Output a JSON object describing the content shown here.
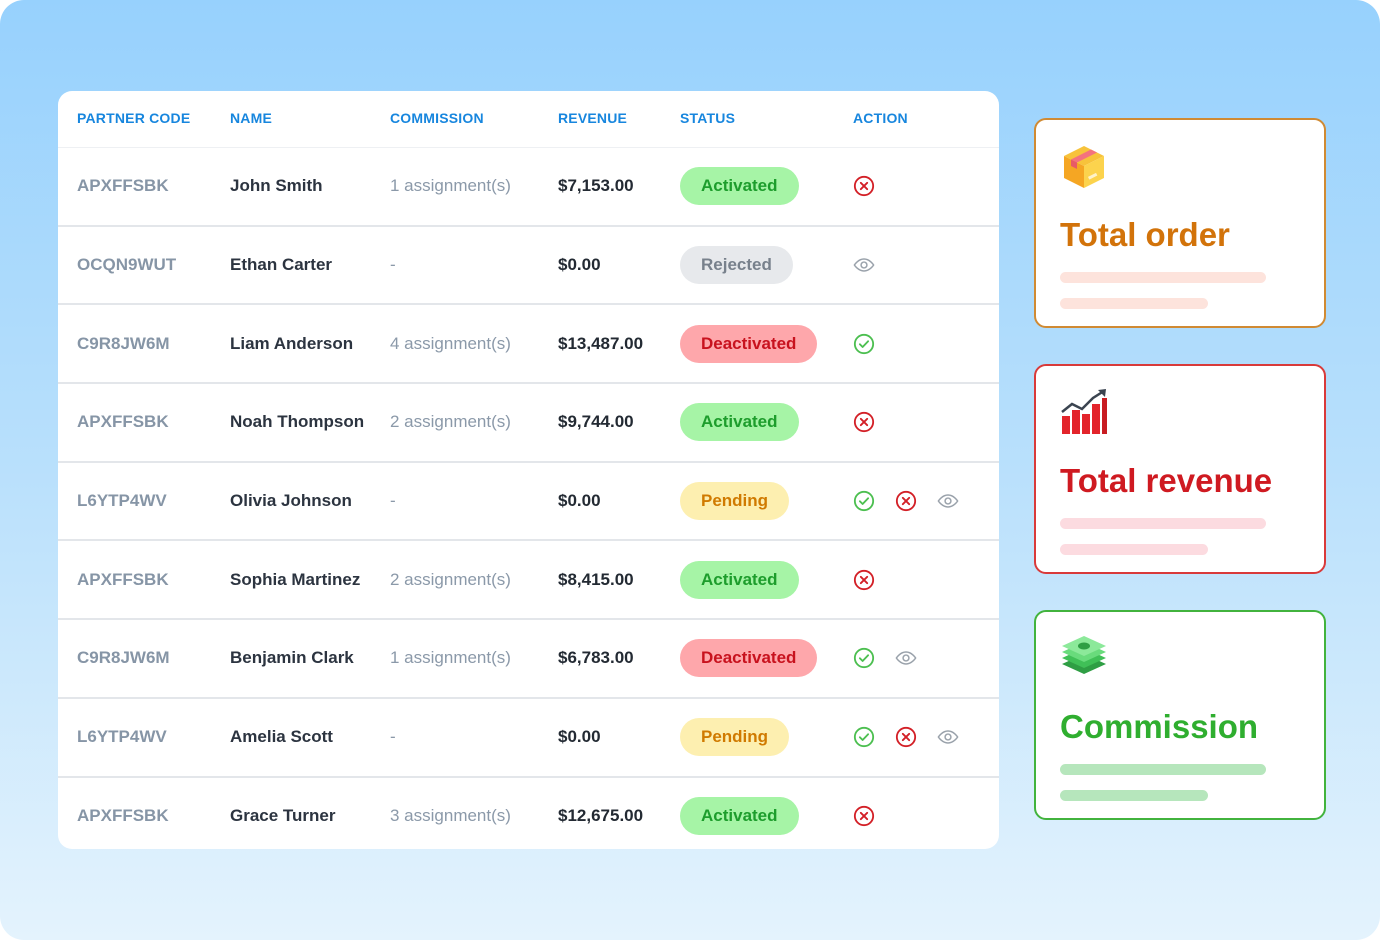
{
  "table": {
    "headers": {
      "partner_code": "PARTNER CODE",
      "name": "NAME",
      "commission": "COMMISSION",
      "revenue": "REVENUE",
      "status": "STATUS",
      "action": "ACTION"
    },
    "rows": [
      {
        "code": "APXFFSBK",
        "name": "John Smith",
        "commission": "1 assignment(s)",
        "revenue": "$7,153.00",
        "status": "Activated",
        "actions": [
          "reject"
        ]
      },
      {
        "code": "OCQN9WUT",
        "name": "Ethan Carter",
        "commission": "-",
        "revenue": "$0.00",
        "status": "Rejected",
        "actions": [
          "view"
        ]
      },
      {
        "code": "C9R8JW6M",
        "name": "Liam Anderson",
        "commission": "4 assignment(s)",
        "revenue": "$13,487.00",
        "status": "Deactivated",
        "actions": [
          "approve"
        ]
      },
      {
        "code": "APXFFSBK",
        "name": "Noah Thompson",
        "commission": "2 assignment(s)",
        "revenue": "$9,744.00",
        "status": "Activated",
        "actions": [
          "reject"
        ]
      },
      {
        "code": "L6YTP4WV",
        "name": "Olivia Johnson",
        "commission": "-",
        "revenue": "$0.00",
        "status": "Pending",
        "actions": [
          "approve",
          "reject",
          "view"
        ]
      },
      {
        "code": "APXFFSBK",
        "name": "Sophia Martinez",
        "commission": "2 assignment(s)",
        "revenue": "$8,415.00",
        "status": "Activated",
        "actions": [
          "reject"
        ]
      },
      {
        "code": "C9R8JW6M",
        "name": "Benjamin Clark",
        "commission": "1 assignment(s)",
        "revenue": "$6,783.00",
        "status": "Deactivated",
        "actions": [
          "approve",
          "view"
        ]
      },
      {
        "code": "L6YTP4WV",
        "name": "Amelia Scott",
        "commission": "-",
        "revenue": "$0.00",
        "status": "Pending",
        "actions": [
          "approve",
          "reject",
          "view"
        ]
      },
      {
        "code": "APXFFSBK",
        "name": "Grace Turner",
        "commission": "3 assignment(s)",
        "revenue": "$12,675.00",
        "status": "Activated",
        "actions": [
          "reject"
        ]
      }
    ]
  },
  "cards": [
    {
      "title": "Total order",
      "icon": "package-box-icon",
      "color": "#d2730a",
      "border": "#d08a33",
      "bar": "#fde3dc"
    },
    {
      "title": "Total revenue",
      "icon": "growth-chart-icon",
      "color": "#cf1a21",
      "border": "#d93a3a",
      "bar": "#fcdbe0"
    },
    {
      "title": "Commission",
      "icon": "money-stack-icon",
      "color": "#2fae2f",
      "border": "#42b33d",
      "bar": "#b6e6bc"
    }
  ],
  "colors": {
    "header_text": "#1786de",
    "activated": "#1d9d2c",
    "rejected": "#78818c",
    "deactivated": "#c8121e",
    "pending": "#d07a00",
    "approve_icon": "#4cbf50",
    "reject_icon": "#d32027",
    "view_icon": "#9aa2ab"
  }
}
